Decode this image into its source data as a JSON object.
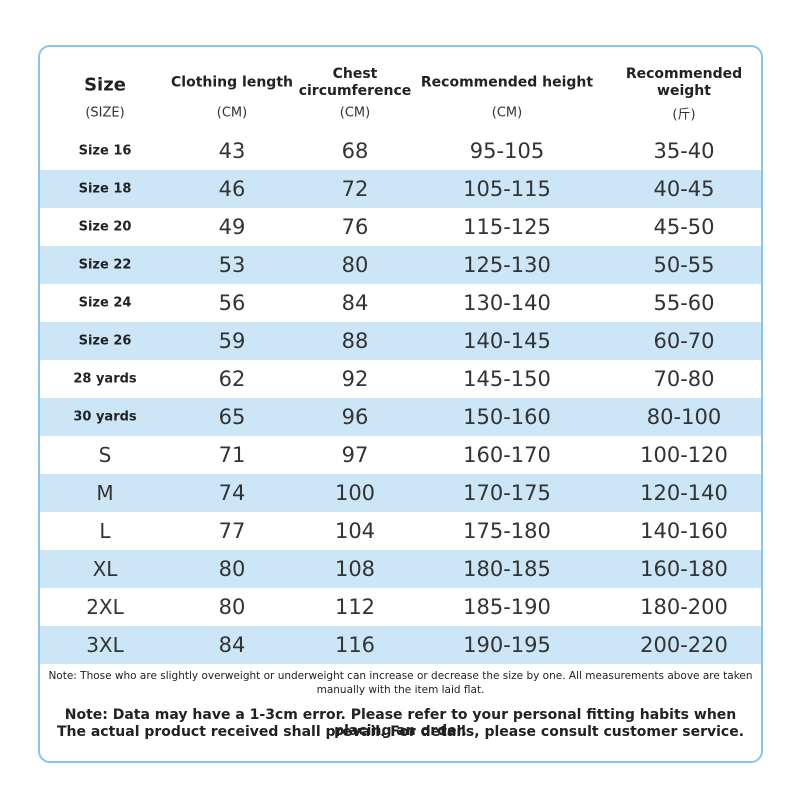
{
  "table": {
    "header": [
      [
        "Size",
        "(SIZE)"
      ],
      [
        "Clothing length",
        "(CM)"
      ],
      [
        "Chest circumference",
        "(CM)"
      ],
      [
        "Recommended height",
        "(CM)"
      ],
      [
        "Recommended weight",
        "(斤)"
      ]
    ],
    "rows": [
      [
        "Size 16",
        "43",
        "68",
        "95-105",
        "35-40"
      ],
      [
        "Size 18",
        "46",
        "72",
        "105-115",
        "40-45"
      ],
      [
        "Size 20",
        "49",
        "76",
        "115-125",
        "45-50"
      ],
      [
        "Size 22",
        "53",
        "80",
        "125-130",
        "50-55"
      ],
      [
        "Size 24",
        "56",
        "84",
        "130-140",
        "55-60"
      ],
      [
        "Size 26",
        "59",
        "88",
        "140-145",
        "60-70"
      ],
      [
        "28 yards",
        "62",
        "92",
        "145-150",
        "70-80"
      ],
      [
        "30 yards",
        "65",
        "96",
        "150-160",
        "80-100"
      ],
      [
        "S",
        "71",
        "97",
        "160-170",
        "100-120"
      ],
      [
        "M",
        "74",
        "100",
        "170-175",
        "120-140"
      ],
      [
        "L",
        "77",
        "104",
        "175-180",
        "140-160"
      ],
      [
        "XL",
        "80",
        "108",
        "180-185",
        "160-180"
      ],
      [
        "2XL",
        "80",
        "112",
        "185-190",
        "180-200"
      ],
      [
        "3XL",
        "84",
        "116",
        "190-195",
        "200-220"
      ]
    ]
  },
  "notes": {
    "small": "Note: Those who are slightly overweight or underweight can increase or decrease the size by one. All measurements above are taken manually with the item laid flat.",
    "large": [
      "Note: Data may have a 1-3cm error. Please refer to your personal fitting habits when placing an order.",
      "The actual product received shall prevail. For details, please consult customer service."
    ]
  }
}
